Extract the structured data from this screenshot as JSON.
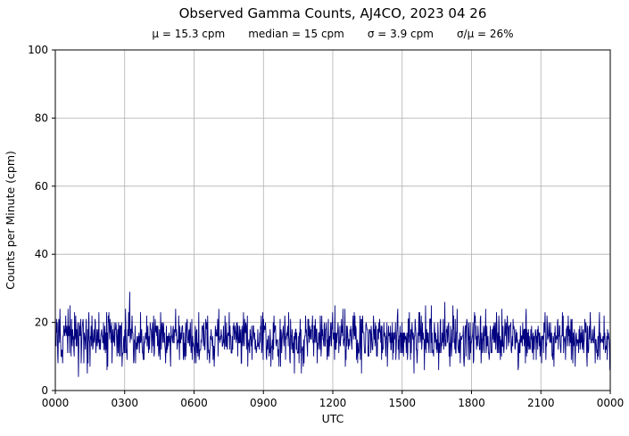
{
  "chart": {
    "title": "Observed Gamma Counts, AJ4CO, 2023 04 26",
    "stats": {
      "mu": "μ = 15.3 cpm",
      "median": "median = 15 cpm",
      "sigma": "σ = 3.9 cpm",
      "cv": "σ/μ = 26%"
    },
    "xlabel": "UTC",
    "ylabel": "Counts per Minute (cpm)"
  },
  "chart_data": {
    "type": "line",
    "title": "Observed Gamma Counts, AJ4CO, 2023 04 26",
    "subtitle": "μ = 15.3 cpm     median = 15 cpm     σ = 3.9 cpm     σ/μ = 26%",
    "xlabel": "UTC",
    "ylabel": "Counts per Minute (cpm)",
    "ylim": [
      0,
      100
    ],
    "ytick_values": [
      0,
      20,
      40,
      60,
      80,
      100
    ],
    "xtick_labels": [
      "0000",
      "0300",
      "0600",
      "0900",
      "1200",
      "1500",
      "1800",
      "2100",
      "0000"
    ],
    "x_span_minutes": 1440,
    "grid": true,
    "legend": "none",
    "line_color": "#000080",
    "grid_color": "#b0b0b0",
    "series": [
      {
        "name": "observed gamma counts",
        "units": "cpm",
        "mean": 15.3,
        "median": 15,
        "sigma": 3.9,
        "observed_min": 3,
        "observed_max": 29,
        "n_points": 1440,
        "seed": 20230426
      }
    ]
  }
}
